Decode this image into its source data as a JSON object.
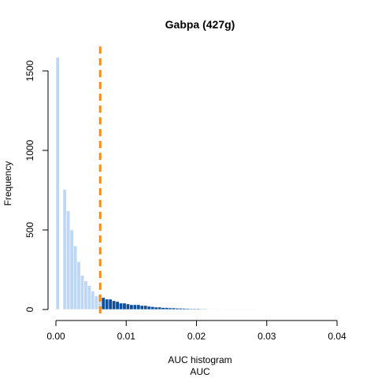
{
  "chart_data": {
    "type": "bar",
    "title": "Gabpa (427g)",
    "subtitle": "AUC histogram",
    "xlabel": "AUC",
    "ylabel": "Frequency",
    "xlim": [
      0,
      0.041
    ],
    "ylim": [
      0,
      1600
    ],
    "x_ticks": [
      0.0,
      0.01,
      0.02,
      0.03,
      0.04
    ],
    "x_tick_labels": [
      "0.00",
      "0.01",
      "0.02",
      "0.03",
      "0.04"
    ],
    "y_ticks": [
      0,
      500,
      1000,
      1500
    ],
    "y_tick_labels": [
      "0",
      "500",
      "1000",
      "1500"
    ],
    "bin_width": 0.0005,
    "threshold": 0.0063,
    "grid": false,
    "colors": {
      "below_threshold": "#bed7f4",
      "above_threshold": "#0d4f9d",
      "threshold_line": "#f28c1b",
      "bar_border": "#ffffff"
    },
    "bins_start": 0.0,
    "values": [
      1585,
      0,
      755,
      620,
      500,
      400,
      300,
      215,
      180,
      150,
      115,
      85,
      90,
      75,
      65,
      65,
      55,
      50,
      40,
      40,
      35,
      30,
      30,
      30,
      25,
      25,
      20,
      18,
      15,
      15,
      12,
      12,
      10,
      10,
      8,
      8,
      7,
      6,
      5,
      5,
      5,
      4,
      4,
      3,
      3,
      3,
      3,
      2,
      2,
      2,
      2,
      2,
      2,
      2,
      2,
      2,
      2,
      2,
      1,
      1,
      1,
      1,
      1,
      1,
      1,
      1,
      1,
      1,
      1,
      1,
      1,
      1,
      1,
      1,
      1,
      1,
      1,
      1,
      1,
      1,
      1,
      1
    ]
  }
}
